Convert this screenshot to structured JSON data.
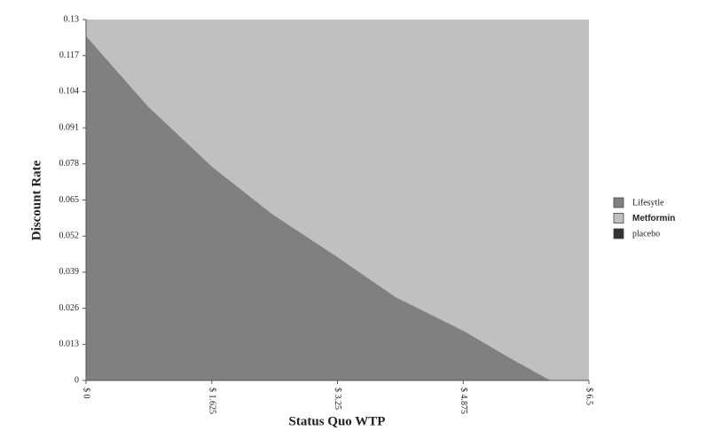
{
  "chart_data": {
    "type": "area",
    "xlabel": "Status Quo WTP",
    "ylabel": "Discount Rate",
    "x": [
      0,
      0.8,
      1.625,
      2.4,
      3.25,
      4,
      4.875,
      5.5,
      6.0
    ],
    "series": [
      {
        "name": "Lifesytle",
        "color": "#808080",
        "values": [
          0.124,
          0.0987,
          0.077,
          0.06,
          0.0444,
          0.03,
          0.0179,
          0.0077,
          0
        ]
      },
      {
        "name": "Metformin",
        "color": "#c0c0c0"
      },
      {
        "name": "placebo",
        "color": "#333333"
      }
    ],
    "xlim": [
      0,
      6.5
    ],
    "xticks": [
      {
        "value": 0,
        "label": "$ 0"
      },
      {
        "value": 1.625,
        "label": "$ 1.625"
      },
      {
        "value": 3.25,
        "label": "$ 3.25"
      },
      {
        "value": 4.875,
        "label": "$ 4.875"
      },
      {
        "value": 6.5,
        "label": "$ 6.5"
      }
    ],
    "ylim": [
      0,
      0.13
    ],
    "yticks": [
      0,
      0.013,
      0.026,
      0.039,
      0.052,
      0.065,
      0.078,
      0.091,
      0.104,
      0.117,
      0.13
    ],
    "legend": "right"
  }
}
